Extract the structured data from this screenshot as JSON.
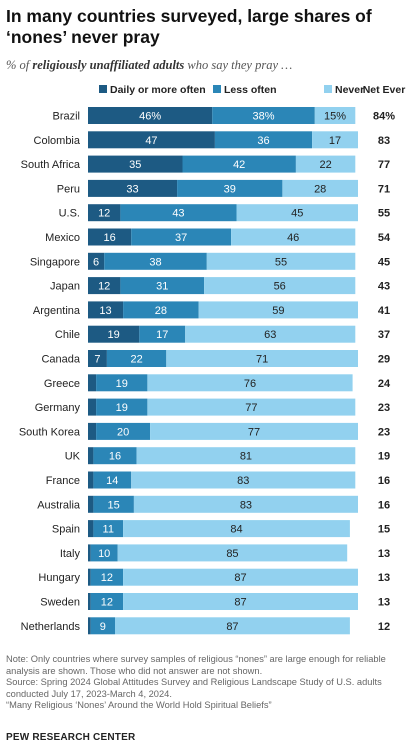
{
  "title": "In many countries surveyed, large shares of ‘nones’ never pray",
  "subtitle": {
    "prefix": "% of ",
    "emphasis": "religiously unaffiliated adults",
    "suffix": " who say they pray …"
  },
  "colors": {
    "daily": "#1d5a83",
    "less": "#2b86b7",
    "never": "#92d1ef"
  },
  "chart_data": {
    "type": "bar",
    "stacked": true,
    "orientation": "horizontal",
    "categories": [
      "Brazil",
      "Colombia",
      "South Africa",
      "Peru",
      "U.S.",
      "Mexico",
      "Singapore",
      "Japan",
      "Argentina",
      "Chile",
      "Canada",
      "Greece",
      "Germany",
      "South Korea",
      "UK",
      "France",
      "Australia",
      "Spain",
      "Italy",
      "Hungary",
      "Sweden",
      "Netherlands"
    ],
    "series": [
      {
        "name": "Daily or more often",
        "values": [
          46,
          47,
          35,
          33,
          12,
          16,
          6,
          12,
          13,
          19,
          7,
          3,
          3,
          3,
          2,
          2,
          2,
          2,
          1,
          1,
          1,
          1
        ],
        "labels": [
          "46%",
          "47",
          "35",
          "33",
          "12",
          "16",
          "6",
          "12",
          "13",
          "19",
          "7",
          "",
          "",
          "",
          "",
          "",
          "",
          "",
          "",
          "",
          "",
          ""
        ]
      },
      {
        "name": "Less often",
        "values": [
          38,
          36,
          42,
          39,
          43,
          37,
          38,
          31,
          28,
          17,
          22,
          19,
          19,
          20,
          16,
          14,
          15,
          11,
          10,
          12,
          12,
          9
        ],
        "labels": [
          "38%",
          "36",
          "42",
          "39",
          "43",
          "37",
          "38",
          "31",
          "28",
          "17",
          "22",
          "19",
          "19",
          "20",
          "16",
          "14",
          "15",
          "11",
          "10",
          "12",
          "12",
          "9"
        ]
      },
      {
        "name": "Never",
        "values": [
          15,
          17,
          22,
          28,
          45,
          46,
          55,
          56,
          59,
          63,
          71,
          76,
          77,
          77,
          81,
          83,
          83,
          84,
          85,
          87,
          87,
          87
        ],
        "labels": [
          "15%",
          "17",
          "22",
          "28",
          "45",
          "46",
          "55",
          "56",
          "59",
          "63",
          "71",
          "76",
          "77",
          "77",
          "81",
          "83",
          "83",
          "84",
          "85",
          "87",
          "87",
          "87"
        ]
      }
    ],
    "net_header": "Net Ever",
    "net": [
      "84%",
      "83",
      "77",
      "71",
      "55",
      "54",
      "45",
      "43",
      "41",
      "37",
      "29",
      "24",
      "23",
      "23",
      "19",
      "16",
      "16",
      "15",
      "13",
      "13",
      "13",
      "12"
    ],
    "xlim": [
      0,
      100
    ],
    "grid": false,
    "legend": "top"
  },
  "footer": {
    "note": "Note: Only countries where survey samples of religious “nones” are large enough for reliable analysis are shown. Those who did not answer are not shown.",
    "source": "Source: Spring 2024 Global Attitudes Survey and Religious Landscape Study of U.S. adults conducted July 17, 2023-March 4, 2024.",
    "report": "“Many Religious ‘Nones’ Around the World Hold Spiritual Beliefs”"
  },
  "brand": "PEW RESEARCH CENTER"
}
